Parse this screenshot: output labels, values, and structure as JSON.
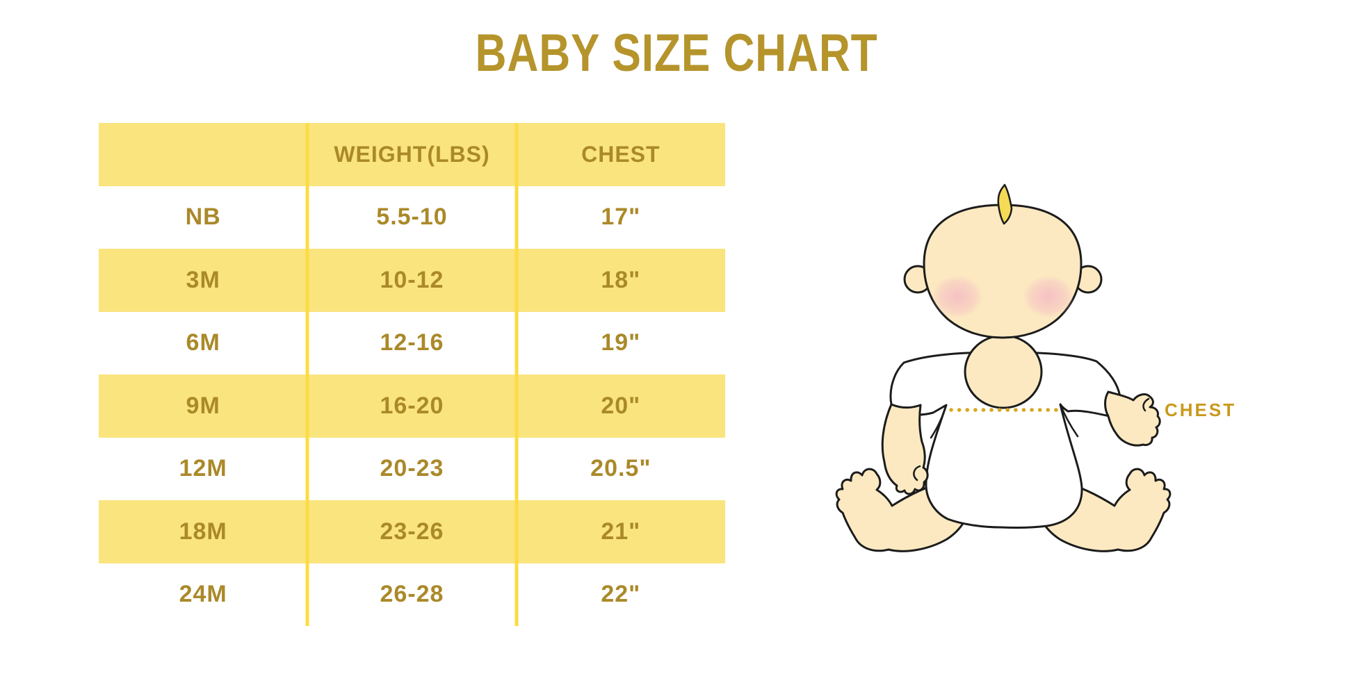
{
  "title": "BABY SIZE CHART",
  "table": {
    "headers": [
      "",
      "WEIGHT(LBS)",
      "CHEST"
    ],
    "rows": [
      [
        "NB",
        "5.5-10",
        "17\""
      ],
      [
        "3M",
        "10-12",
        "18\""
      ],
      [
        "6M",
        "12-16",
        "19\""
      ],
      [
        "9M",
        "16-20",
        "20\""
      ],
      [
        "12M",
        "20-23",
        "20.5\""
      ],
      [
        "18M",
        "23-26",
        "21\""
      ],
      [
        "24M",
        "26-28",
        "22\""
      ]
    ]
  },
  "illustration": {
    "chest_label": "CHEST"
  },
  "colors": {
    "title_gold": "#B5942C",
    "cell_gold": "#AA8929",
    "row_yellow": "#FAE47E",
    "separator_yellow": "#FCDC43",
    "label_gold": "#C9991B",
    "dot_gold": "#D8A81E",
    "skin": "#FCE9C1",
    "blush": "#F5BDC4",
    "hair_yellow": "#F5DB55",
    "outline": "#1C1C1C",
    "background": "#FFFFFF"
  },
  "chart_data": {
    "type": "table",
    "title": "BABY SIZE CHART",
    "columns": [
      "",
      "WEIGHT(LBS)",
      "CHEST"
    ],
    "rows": [
      {
        "size": "NB",
        "weight_lbs": "5.5-10",
        "chest": "17\""
      },
      {
        "size": "3M",
        "weight_lbs": "10-12",
        "chest": "18\""
      },
      {
        "size": "6M",
        "weight_lbs": "12-16",
        "chest": "19\""
      },
      {
        "size": "9M",
        "weight_lbs": "16-20",
        "chest": "20\""
      },
      {
        "size": "12M",
        "weight_lbs": "20-23",
        "chest": "20.5\""
      },
      {
        "size": "18M",
        "weight_lbs": "23-26",
        "chest": "21\""
      },
      {
        "size": "24M",
        "weight_lbs": "26-28",
        "chest": "22\""
      }
    ]
  }
}
